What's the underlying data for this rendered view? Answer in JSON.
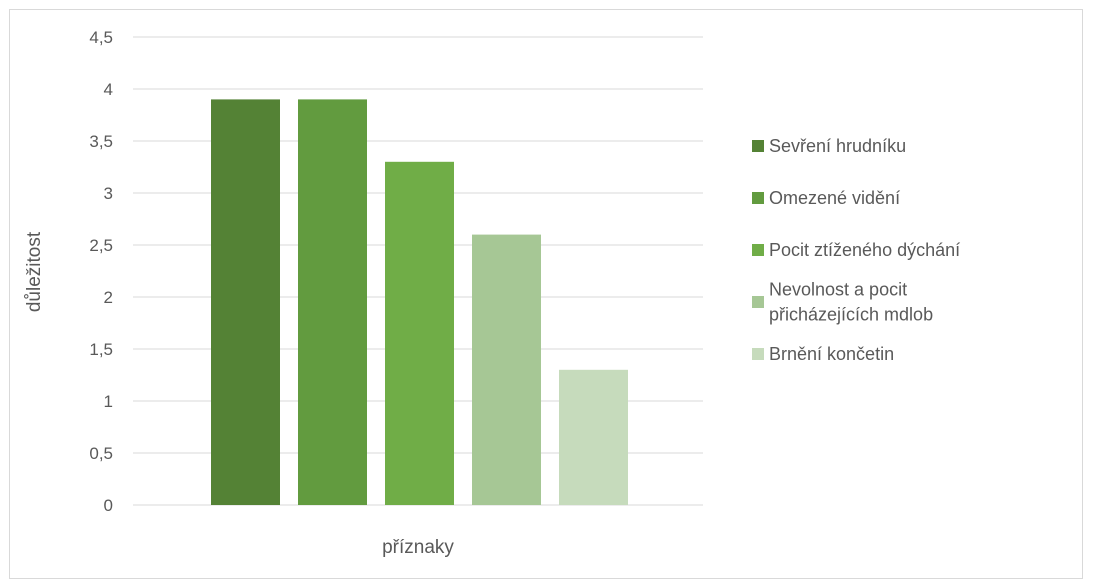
{
  "chart_data": {
    "type": "bar",
    "title": "",
    "xlabel": "příznaky",
    "ylabel": "důležitost",
    "ylim": [
      0,
      4.5
    ],
    "y_ticks": [
      "0",
      "0,5",
      "1",
      "1,5",
      "2",
      "2,5",
      "3",
      "3,5",
      "4",
      "4,5"
    ],
    "grid": true,
    "legend_position": "right",
    "series": [
      {
        "name": "Sevření hrudníku",
        "value": 3.9,
        "color": "#548235"
      },
      {
        "name": "Omezené vidění",
        "value": 3.9,
        "color": "#629b3f"
      },
      {
        "name": "Pocit ztíženého dýchání",
        "value": 3.3,
        "color": "#70ad47"
      },
      {
        "name": "Nevolnost a pocit přicházejících mdlob",
        "legend_lines": [
          "Nevolnost a pocit",
          "přicházejících mdlob"
        ],
        "value": 2.6,
        "color": "#a6c795"
      },
      {
        "name": "Brnění končetin",
        "value": 1.3,
        "color": "#c6dbbc"
      }
    ]
  }
}
